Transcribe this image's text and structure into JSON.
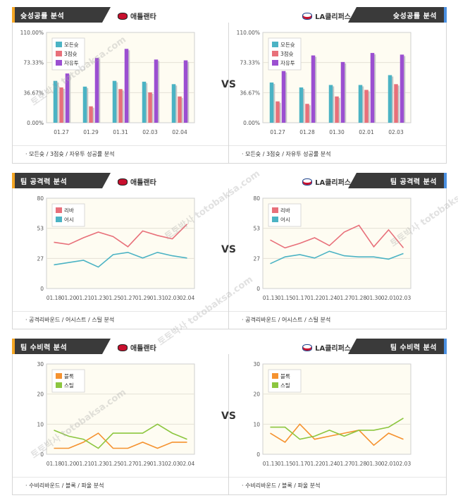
{
  "vs_label": "VS",
  "watermark": "토토박사 totobaksa.com",
  "panels": [
    {
      "id": "p0",
      "section_title": "슛성공률 분석",
      "team": "애틀랜타",
      "logo": "hawks-logo-icon",
      "side": "left",
      "footer": "· 모든슛 / 3점슛 / 자유투 성공률 분석",
      "chart_data": {
        "type": "bar",
        "categories": [
          "01.27",
          "01.29",
          "01.31",
          "02.03",
          "02.04"
        ],
        "series": [
          {
            "name": "모든슛",
            "color": "#4bb3c4",
            "values": [
              51,
              44,
              51,
              50,
              47
            ]
          },
          {
            "name": "3점슛",
            "color": "#e8707a",
            "values": [
              43,
              20,
              41,
              37,
              32
            ]
          },
          {
            "name": "자유투",
            "color": "#9b4fd1",
            "values": [
              60,
              79,
              90,
              77,
              76
            ]
          }
        ],
        "ylim": [
          0,
          110
        ],
        "yticks": [
          "0.00%",
          "36.67%",
          "73.33%",
          "110.00%"
        ]
      }
    },
    {
      "id": "p1",
      "section_title": "슛성공률 분석",
      "team": "LA클리퍼스",
      "logo": "clippers-logo-icon",
      "side": "right",
      "footer": "· 모든슛 / 3점슛 / 자유투 성공률 분석",
      "chart_data": {
        "type": "bar",
        "categories": [
          "01.27",
          "01.28",
          "01.30",
          "02.01",
          "02.03"
        ],
        "series": [
          {
            "name": "모든슛",
            "color": "#4bb3c4",
            "values": [
              49,
              43,
              46,
              46,
              58
            ]
          },
          {
            "name": "3점슛",
            "color": "#e8707a",
            "values": [
              26,
              23,
              32,
              40,
              47
            ]
          },
          {
            "name": "자유투",
            "color": "#9b4fd1",
            "values": [
              63,
              82,
              74,
              85,
              83
            ]
          }
        ],
        "ylim": [
          0,
          110
        ],
        "yticks": [
          "0.00%",
          "36.67%",
          "73.33%",
          "110.00%"
        ]
      }
    },
    {
      "id": "p2",
      "section_title": "팀 공격력 분석",
      "team": "애틀랜타",
      "logo": "hawks-logo-icon",
      "side": "left",
      "footer": "· 공격리바운드 / 어시스트 / 스틸 분석",
      "chart_data": {
        "type": "line",
        "categories": [
          "01.18",
          "01.20",
          "01.21",
          "01.23",
          "01.25",
          "01.27",
          "01.29",
          "01.31",
          "02.03",
          "02.04"
        ],
        "series": [
          {
            "name": "리바",
            "color": "#e8707a",
            "values": [
              41,
              39,
              45,
              50,
              46,
              37,
              51,
              47,
              44,
              57
            ]
          },
          {
            "name": "어시",
            "color": "#4bb3c4",
            "values": [
              21,
              23,
              25,
              19,
              30,
              32,
              27,
              32,
              29,
              27
            ]
          }
        ],
        "ylim": [
          0,
          80
        ],
        "yticks": [
          "0",
          "27",
          "53",
          "80"
        ]
      }
    },
    {
      "id": "p3",
      "section_title": "팀 공격력 분석",
      "team": "LA클리퍼스",
      "logo": "clippers-logo-icon",
      "side": "right",
      "footer": "· 공격리바운드 / 어시스트 / 스틸 분석",
      "chart_data": {
        "type": "line",
        "categories": [
          "01.13",
          "01.15",
          "01.17",
          "01.22",
          "01.24",
          "01.27",
          "01.28",
          "01.30",
          "02.01",
          "02.03"
        ],
        "series": [
          {
            "name": "리바",
            "color": "#e8707a",
            "values": [
              43,
              36,
              40,
              45,
              38,
              50,
              56,
              37,
              52,
              36
            ]
          },
          {
            "name": "어시",
            "color": "#4bb3c4",
            "values": [
              22,
              28,
              30,
              27,
              33,
              29,
              28,
              28,
              26,
              31
            ]
          }
        ],
        "ylim": [
          0,
          80
        ],
        "yticks": [
          "0",
          "27",
          "53",
          "80"
        ]
      }
    },
    {
      "id": "p4",
      "section_title": "팀 수비력 분석",
      "team": "애틀랜타",
      "logo": "hawks-logo-icon",
      "side": "left",
      "footer": "· 수비리바운드 / 블록 / 파울 분석",
      "chart_data": {
        "type": "line",
        "categories": [
          "01.18",
          "01.20",
          "01.21",
          "01.23",
          "01.25",
          "01.27",
          "01.29",
          "01.31",
          "02.03",
          "02.04"
        ],
        "series": [
          {
            "name": "블록",
            "color": "#f5922f",
            "values": [
              2,
              2,
              4,
              7,
              2,
              2,
              4,
              2,
              4,
              4
            ]
          },
          {
            "name": "스틸",
            "color": "#8cc63f",
            "values": [
              8,
              6,
              5,
              2,
              7,
              7,
              7,
              10,
              7,
              5
            ]
          }
        ],
        "ylim": [
          0,
          30
        ],
        "yticks": [
          "0",
          "10",
          "20",
          "30"
        ]
      }
    },
    {
      "id": "p5",
      "section_title": "팀 수비력 분석",
      "team": "LA클리퍼스",
      "logo": "clippers-logo-icon",
      "side": "right",
      "footer": "· 수비리바운드 / 블록 / 파울 분석",
      "chart_data": {
        "type": "line",
        "categories": [
          "01.13",
          "01.15",
          "01.17",
          "01.22",
          "01.24",
          "01.27",
          "01.28",
          "01.30",
          "02.01",
          "02.03"
        ],
        "series": [
          {
            "name": "블록",
            "color": "#f5922f",
            "values": [
              7,
              4,
              10,
              5,
              6,
              7,
              8,
              3,
              7,
              5
            ]
          },
          {
            "name": "스틸",
            "color": "#8cc63f",
            "values": [
              9,
              9,
              5,
              6,
              8,
              6,
              8,
              8,
              9,
              12
            ]
          }
        ],
        "ylim": [
          0,
          30
        ],
        "yticks": [
          "0",
          "10",
          "20",
          "30"
        ]
      }
    }
  ]
}
